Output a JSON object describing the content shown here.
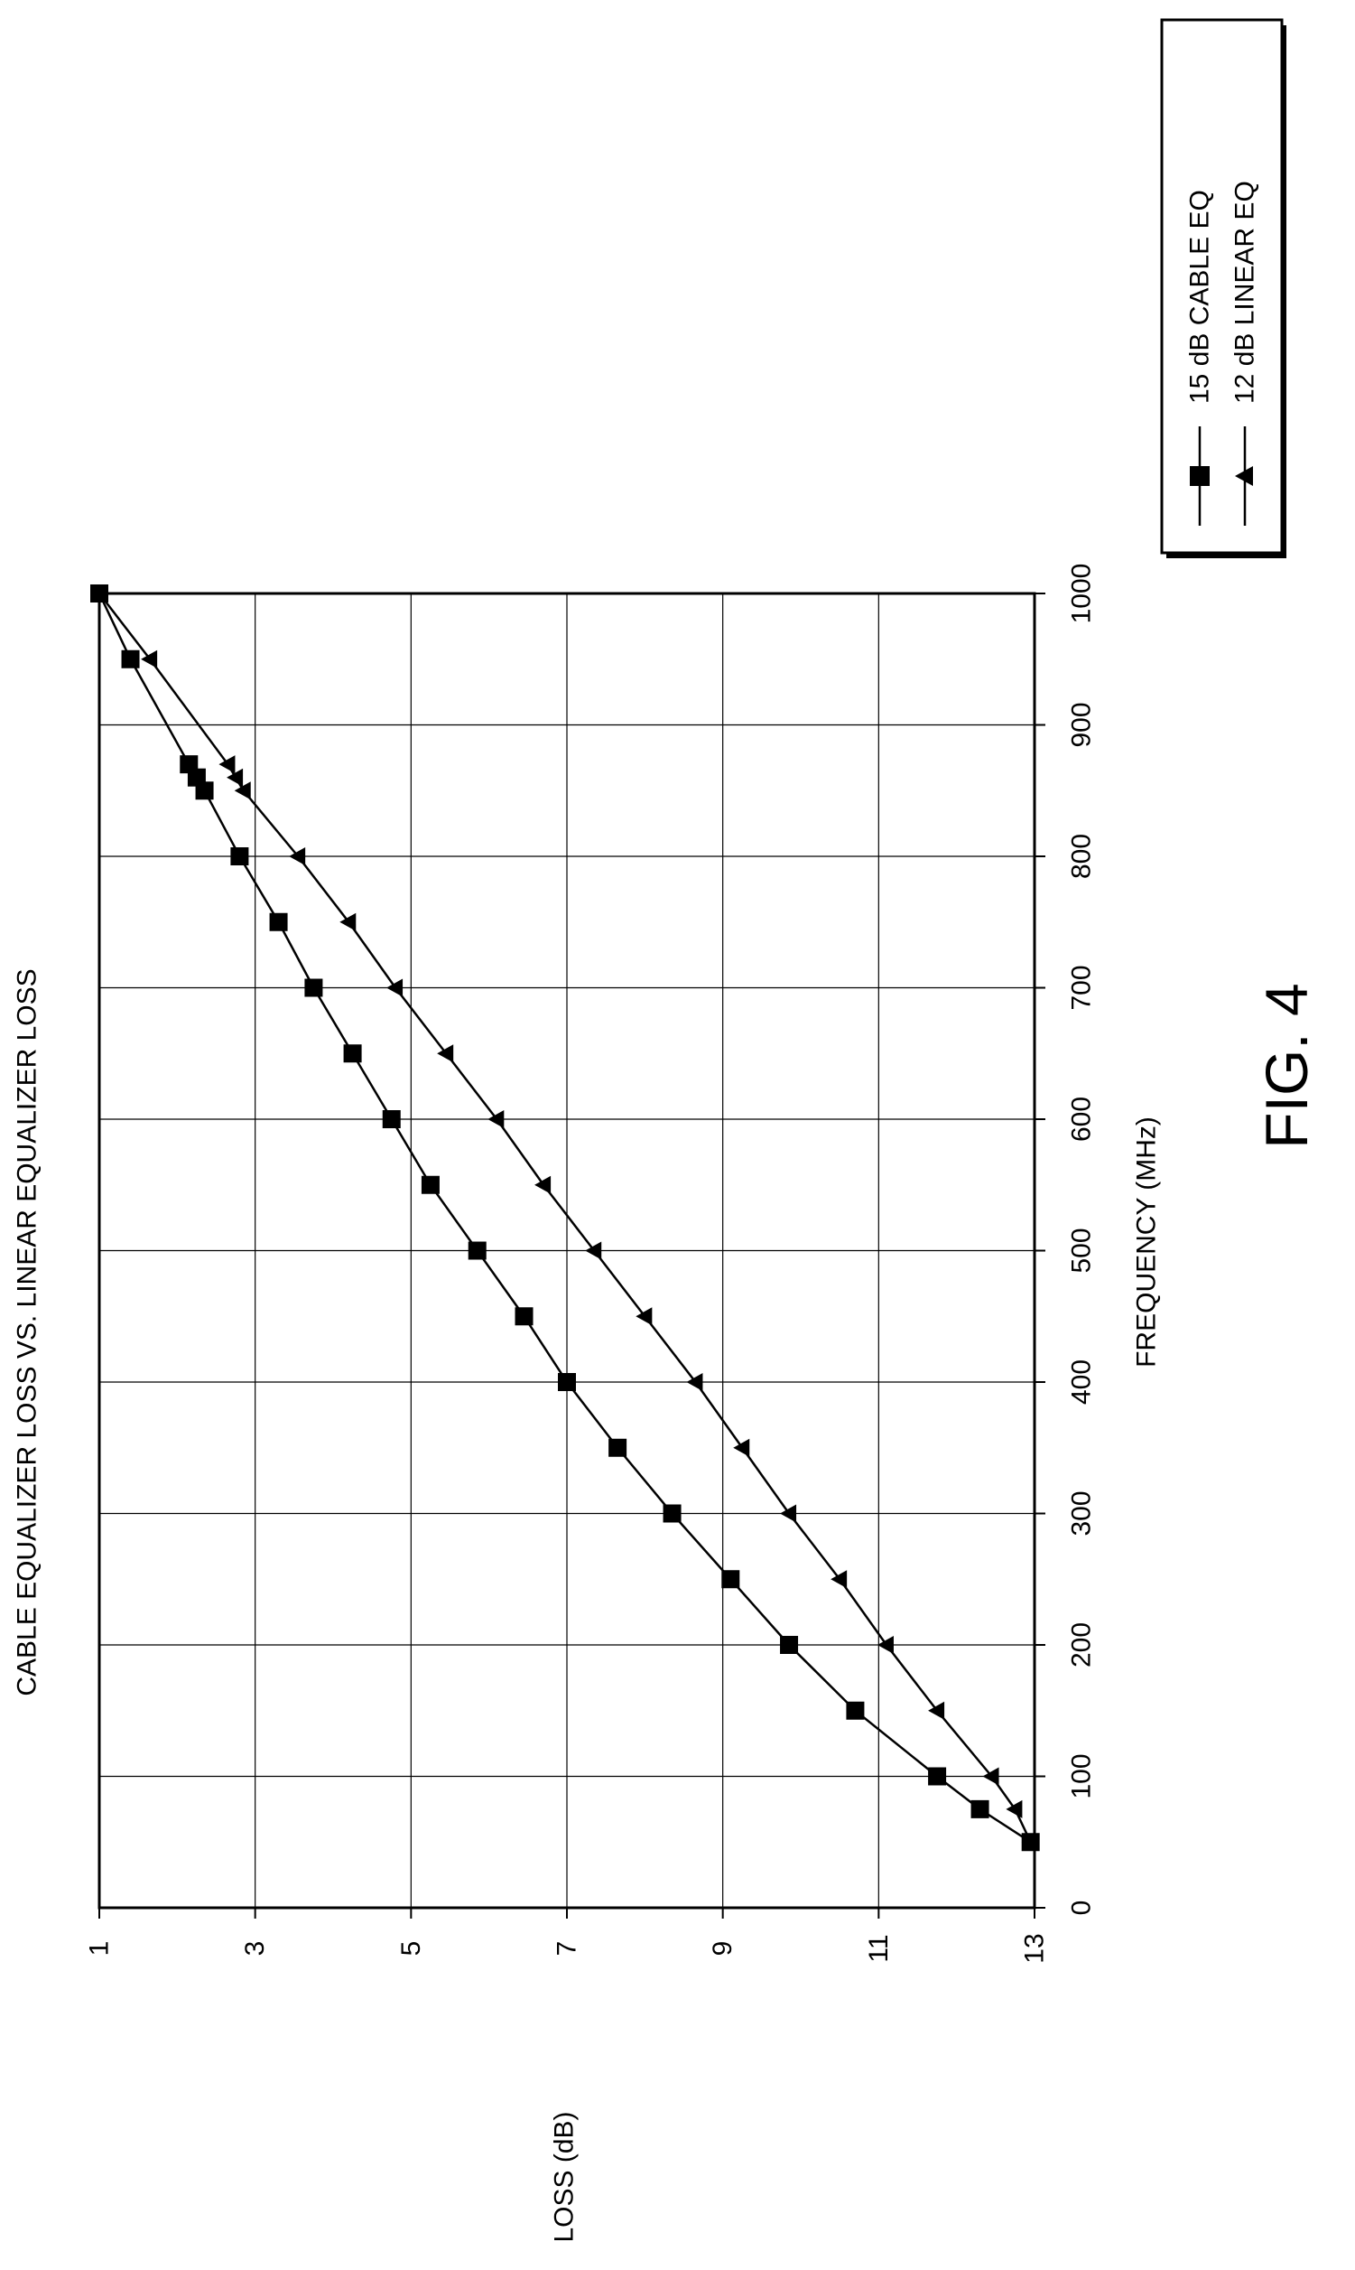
{
  "figure_label": "FIG. 4",
  "chart_data": {
    "type": "line",
    "title": "CABLE EQUALIZER LOSS VS. LINEAR EQUALIZER LOSS",
    "xlabel": "FREQUENCY (MHz)",
    "ylabel": "LOSS (dB)",
    "xlim": [
      0,
      1000
    ],
    "ylim": [
      1,
      13
    ],
    "y_inverted": true,
    "orientation": "rotated 90 degrees counter-clockwise",
    "grid": true,
    "legend_position": "top-right",
    "x_ticks": [
      "0",
      "100",
      "200",
      "300",
      "400",
      "500",
      "600",
      "700",
      "800",
      "900",
      "1000"
    ],
    "y_ticks": [
      "1",
      "3",
      "5",
      "7",
      "9",
      "11",
      "13"
    ],
    "series": [
      {
        "name": "15 dB CABLE EQ",
        "marker": "square",
        "x": [
          50,
          75,
          100,
          150,
          200,
          250,
          300,
          350,
          400,
          450,
          500,
          550,
          600,
          650,
          700,
          750,
          800,
          850,
          860,
          870,
          950,
          1000
        ],
        "y": [
          12.95,
          12.3,
          11.75,
          10.7,
          9.85,
          9.1,
          8.35,
          7.65,
          7.0,
          6.45,
          5.85,
          5.25,
          4.75,
          4.25,
          3.75,
          3.3,
          2.8,
          2.35,
          2.25,
          2.15,
          1.4,
          1.0
        ]
      },
      {
        "name": "12 dB LINEAR EQ",
        "marker": "triangle",
        "x": [
          50,
          75,
          100,
          150,
          200,
          250,
          300,
          350,
          400,
          450,
          500,
          550,
          600,
          650,
          700,
          750,
          800,
          850,
          860,
          870,
          950,
          1000
        ],
        "y": [
          12.95,
          12.75,
          12.45,
          11.75,
          11.1,
          10.5,
          9.85,
          9.25,
          8.65,
          8.0,
          7.35,
          6.7,
          6.1,
          5.45,
          4.8,
          4.2,
          3.55,
          2.85,
          2.75,
          2.65,
          1.65,
          1.0
        ]
      }
    ]
  }
}
